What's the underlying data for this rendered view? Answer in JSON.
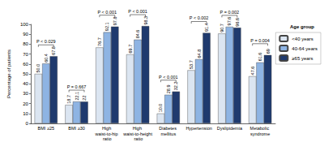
{
  "chart_data": {
    "type": "bar",
    "categories": [
      "BMI ≥25",
      "BMI ≥30",
      "High waist-to-hip ratio",
      "High waist-to-height ratio",
      "Diabetes mellitus",
      "Hypertension",
      "Dyslipidemia",
      "Metabolic syndrome"
    ],
    "series": [
      {
        "name": "<40 years",
        "color": "#dbe5f1",
        "values": [
          50.0,
          18.7,
          76.7,
          69.7,
          10.0,
          53.7,
          90.7,
          47.6
        ],
        "value_labels": [
          "50.0",
          "18.7",
          "76.7",
          "69.7",
          "10.0",
          "53.7",
          "90.7",
          "47.6"
        ]
      },
      {
        "name": "40-64 years",
        "color": "#8eb4e3",
        "values": [
          60.4,
          22.1,
          92.1,
          84.6,
          28.9,
          64.8,
          97.6,
          61.6
        ]
      },
      {
        "name": "≥65 years",
        "color": "#1f3a6e",
        "values": [
          67.8,
          22.0,
          97.8,
          98.3,
          32.2,
          91.4,
          96.6,
          69.0
        ]
      }
    ],
    "y_label": "Percentage of patients",
    "ylim": [
      0,
      100
    ],
    "yticks": [
      0,
      10,
      20,
      30,
      40,
      50,
      60,
      70,
      80,
      90,
      100
    ],
    "grid": false,
    "legend": "top-right",
    "data_labels": true,
    "annotations": [
      {
        "text": "Age group"
      },
      {
        "text": "P < 0.029",
        "category": "BMI ≥25"
      },
      {
        "text": "P = 0.667",
        "category": "BMI ≥30"
      },
      {
        "text": "P < 0.001",
        "category": "High waist-to-hip ratio"
      },
      {
        "text": "P < 0.001",
        "category": "High waist-to-height ratio"
      },
      {
        "text": "P < 0.001",
        "category": "Diabetes mellitus"
      },
      {
        "text": "P < 0.002",
        "category": "Hypertension"
      },
      {
        "text": "P = 0.002",
        "category": "Dyslipidemia"
      },
      {
        "text": "P = 0.004",
        "category": "Metabolic syndrome"
      }
    ]
  }
}
